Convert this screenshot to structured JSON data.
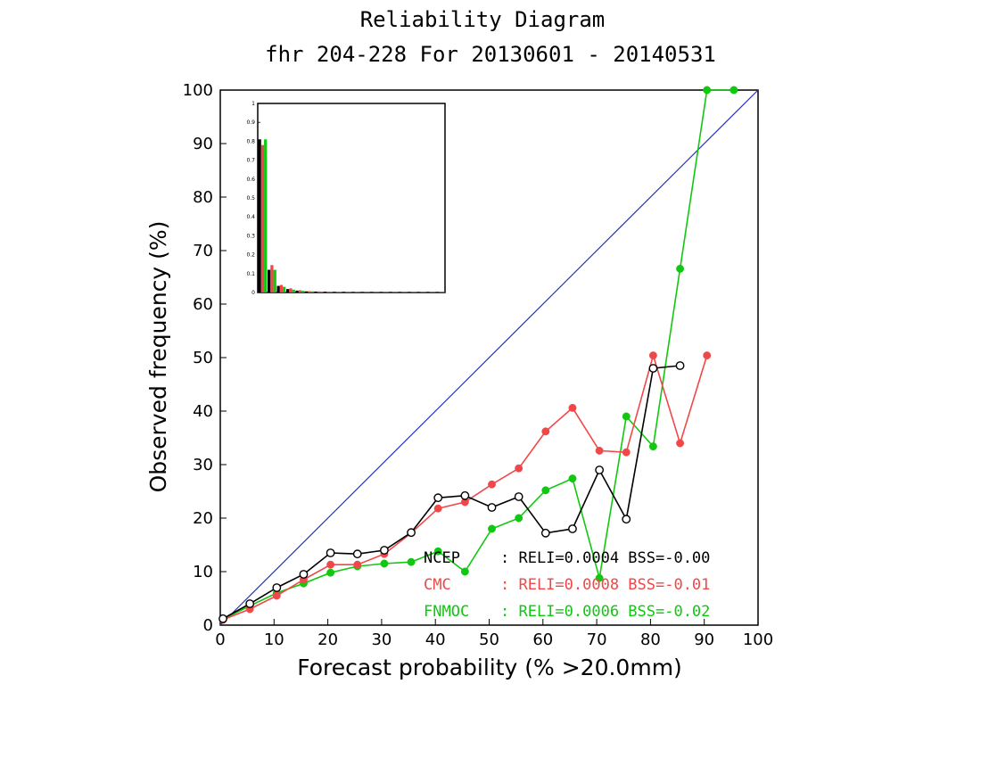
{
  "chart_data": {
    "type": "line",
    "title": "Reliability Diagram",
    "subtitle": "fhr 204-228 For 20130601 - 20140531",
    "xlabel": "Forecast probability (% >20.0mm)",
    "ylabel": "Observed frequency (%)",
    "xlim": [
      0,
      100
    ],
    "ylim": [
      0,
      100
    ],
    "x_ticks": [
      "0",
      "10",
      "20",
      "30",
      "40",
      "50",
      "60",
      "70",
      "80",
      "90",
      "100"
    ],
    "y_ticks": [
      "0",
      "10",
      "20",
      "30",
      "40",
      "50",
      "60",
      "70",
      "80",
      "90",
      "100"
    ],
    "diagonal_color": "#2030c0",
    "series": [
      {
        "name": "NCEP",
        "color": "#000000",
        "marker": "open-circle",
        "x": [
          0.5,
          5.5,
          10.5,
          15.5,
          20.5,
          25.5,
          30.5,
          35.5,
          40.5,
          45.5,
          50.5,
          55.5,
          60.5,
          65.5,
          70.5,
          75.5,
          80.5,
          85.5
        ],
        "y": [
          1.2,
          4.0,
          7.0,
          9.5,
          13.5,
          13.3,
          14.0,
          17.3,
          23.8,
          24.2,
          22.0,
          24.0,
          17.2,
          18.0,
          29.0,
          19.8,
          48.0,
          48.5
        ]
      },
      {
        "name": "CMC",
        "color": "#f04848",
        "marker": "filled-circle",
        "x": [
          0.5,
          5.5,
          10.5,
          15.5,
          20.5,
          25.5,
          30.5,
          35.5,
          40.5,
          45.5,
          50.5,
          55.5,
          60.5,
          65.5,
          70.5,
          75.5,
          80.5,
          85.5,
          90.5
        ],
        "y": [
          1.0,
          3.0,
          5.5,
          8.5,
          11.3,
          11.3,
          13.3,
          17.2,
          21.8,
          23.0,
          26.3,
          29.3,
          36.2,
          40.6,
          32.6,
          32.3,
          50.4,
          34.0,
          50.4
        ]
      },
      {
        "name": "FNMOC",
        "color": "#10c810",
        "marker": "filled-circle",
        "x": [
          0.5,
          5.5,
          10.5,
          15.5,
          20.5,
          25.5,
          30.5,
          35.5,
          40.5,
          45.5,
          50.5,
          55.5,
          60.5,
          65.5,
          70.5,
          75.5,
          80.5,
          85.5,
          90.5,
          95.5
        ],
        "y": [
          1.1,
          3.6,
          6.0,
          7.8,
          9.8,
          11.0,
          11.5,
          11.8,
          13.8,
          10.0,
          18.0,
          20.0,
          25.2,
          27.4,
          8.8,
          39.0,
          33.4,
          66.6,
          100,
          100
        ]
      }
    ],
    "legend": [
      {
        "name": "NCEP",
        "text": ": RELI=0.0004 BSS=-0.00",
        "color": "#000000"
      },
      {
        "name": "CMC",
        "text": ": RELI=0.0008 BSS=-0.01",
        "color": "#f04848"
      },
      {
        "name": "FNMOC",
        "text": ": RELI=0.0006 BSS=-0.02",
        "color": "#10c810"
      }
    ],
    "inset": {
      "type": "bar",
      "description_none": "",
      "ylim": [
        0,
        1
      ],
      "y_ticks": [
        "0",
        "0.1",
        "0.2",
        "0.3",
        "0.4",
        "0.5",
        "0.6",
        "0.7",
        "0.8",
        "0.9",
        "1"
      ],
      "bins": 20,
      "series": [
        {
          "name": "NCEP",
          "color": "#000000",
          "values": [
            0.81,
            0.12,
            0.035,
            0.018,
            0.01,
            0.006,
            0.005,
            0.004,
            0.003,
            0.003,
            0.002,
            0.002,
            0.002,
            0.002,
            0.002,
            0.002,
            0.002,
            0.002,
            0.002,
            0.002
          ]
        },
        {
          "name": "CMC",
          "color": "#f04848",
          "values": [
            0.78,
            0.145,
            0.04,
            0.022,
            0.012,
            0.007,
            0.006,
            0.005,
            0.004,
            0.003,
            0.003,
            0.002,
            0.002,
            0.002,
            0.002,
            0.002,
            0.002,
            0.002,
            0.002,
            0.002
          ]
        },
        {
          "name": "FNMOC",
          "color": "#10c810",
          "values": [
            0.81,
            0.12,
            0.03,
            0.015,
            0.009,
            0.006,
            0.005,
            0.004,
            0.003,
            0.003,
            0.002,
            0.002,
            0.002,
            0.002,
            0.002,
            0.002,
            0.002,
            0.002,
            0.002,
            0.002
          ]
        }
      ]
    }
  }
}
